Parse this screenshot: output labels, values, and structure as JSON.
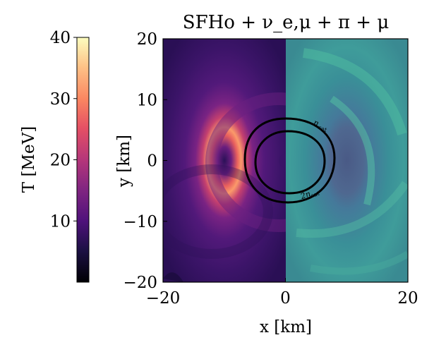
{
  "chart_data": {
    "type": "heatmap",
    "title": "SFHo + ν_e,μ + π + μ",
    "xlabel": "x [km]",
    "ylabel": "y [km]",
    "xlim": [
      -20,
      20
    ],
    "ylim": [
      -20,
      20
    ],
    "x_ticks": [
      "−20",
      "0",
      "20"
    ],
    "y_ticks": [
      "−20",
      "−10",
      "0",
      "10",
      "20"
    ],
    "colorbar": {
      "label": "T [MeV]",
      "range": [
        0,
        40
      ],
      "ticks": [
        "10",
        "20",
        "30",
        "40"
      ],
      "colormap": "magma"
    },
    "panels": {
      "left_half": "temperature T (magma colormap), hot ring ≈ 30–35 MeV at r ≈ 4–7 km, cool center",
      "right_half": "teal density map"
    },
    "contours": [
      {
        "label": "n_sat",
        "radius_km": 6.2
      },
      {
        "label": "2n_sat",
        "radius_km": 4.8
      }
    ],
    "grid": false
  }
}
